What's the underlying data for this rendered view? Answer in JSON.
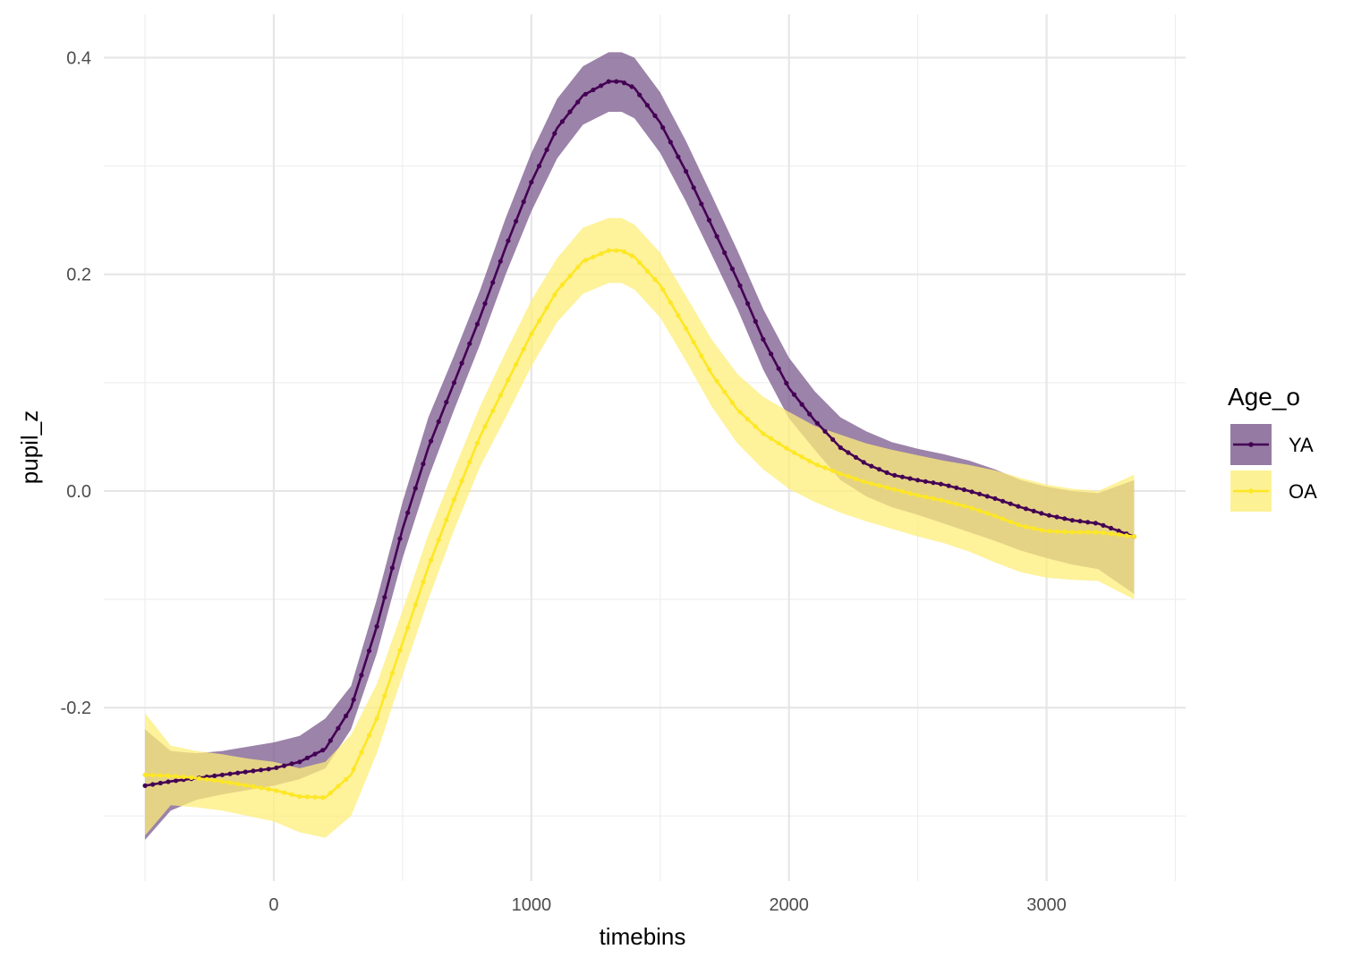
{
  "chart_data": {
    "type": "line",
    "xlabel": "timebins",
    "ylabel": "pupil_z",
    "xlim": [
      -660,
      3540
    ],
    "ylim": [
      -0.36,
      0.44
    ],
    "x_ticks": [
      0,
      1000,
      2000,
      3000
    ],
    "x_tick_labels": [
      "0",
      "1000",
      "2000",
      "3000"
    ],
    "y_ticks": [
      -0.2,
      0.0,
      0.2,
      0.4
    ],
    "y_tick_labels": [
      "-0.2",
      "0.0",
      "0.2",
      "0.4"
    ],
    "grid": true,
    "legend": {
      "title": "Age_o",
      "position": "right"
    },
    "x": [
      -500,
      -400,
      -300,
      -200,
      -100,
      0,
      100,
      200,
      300,
      400,
      500,
      600,
      700,
      800,
      900,
      1000,
      1100,
      1200,
      1300,
      1350,
      1400,
      1500,
      1600,
      1700,
      1800,
      1900,
      2000,
      2100,
      2200,
      2300,
      2400,
      2500,
      2600,
      2700,
      2800,
      2900,
      3000,
      3100,
      3200,
      3340
    ],
    "series": [
      {
        "name": "YA",
        "color": "#440154",
        "band_color": "#7b5a8c",
        "y": [
          -0.272,
          -0.268,
          -0.265,
          -0.262,
          -0.259,
          -0.256,
          -0.25,
          -0.238,
          -0.2,
          -0.125,
          -0.035,
          0.04,
          0.1,
          0.16,
          0.225,
          0.285,
          0.335,
          0.365,
          0.378,
          0.378,
          0.372,
          0.34,
          0.295,
          0.245,
          0.195,
          0.14,
          0.095,
          0.065,
          0.04,
          0.025,
          0.015,
          0.01,
          0.006,
          0.0,
          -0.007,
          -0.015,
          -0.022,
          -0.027,
          -0.03,
          -0.042
        ],
        "lower": [
          -0.322,
          -0.295,
          -0.285,
          -0.28,
          -0.276,
          -0.272,
          -0.266,
          -0.256,
          -0.22,
          -0.15,
          -0.062,
          0.012,
          0.075,
          0.135,
          0.2,
          0.258,
          0.307,
          0.338,
          0.35,
          0.35,
          0.344,
          0.312,
          0.267,
          0.218,
          0.168,
          0.112,
          0.067,
          0.038,
          0.01,
          -0.005,
          -0.015,
          -0.022,
          -0.03,
          -0.038,
          -0.046,
          -0.055,
          -0.062,
          -0.068,
          -0.072,
          -0.095
        ],
        "upper": [
          -0.22,
          -0.24,
          -0.242,
          -0.24,
          -0.236,
          -0.232,
          -0.226,
          -0.21,
          -0.18,
          -0.1,
          -0.01,
          0.068,
          0.125,
          0.185,
          0.252,
          0.312,
          0.362,
          0.392,
          0.405,
          0.405,
          0.4,
          0.368,
          0.323,
          0.273,
          0.222,
          0.168,
          0.123,
          0.092,
          0.068,
          0.055,
          0.045,
          0.039,
          0.034,
          0.028,
          0.02,
          0.01,
          0.004,
          0.0,
          -0.002,
          0.01
        ]
      },
      {
        "name": "OA",
        "color": "#fde725",
        "band_color": "#fdee7a",
        "y": [
          -0.262,
          -0.263,
          -0.265,
          -0.268,
          -0.272,
          -0.276,
          -0.282,
          -0.283,
          -0.262,
          -0.21,
          -0.14,
          -0.07,
          -0.008,
          0.05,
          0.098,
          0.145,
          0.185,
          0.212,
          0.222,
          0.222,
          0.216,
          0.19,
          0.15,
          0.108,
          0.075,
          0.053,
          0.038,
          0.025,
          0.016,
          0.008,
          0.002,
          -0.004,
          -0.009,
          -0.015,
          -0.023,
          -0.032,
          -0.037,
          -0.038,
          -0.038,
          -0.042
        ],
        "lower": [
          -0.318,
          -0.29,
          -0.292,
          -0.295,
          -0.3,
          -0.305,
          -0.315,
          -0.32,
          -0.3,
          -0.242,
          -0.17,
          -0.1,
          -0.036,
          0.022,
          0.068,
          0.115,
          0.156,
          0.182,
          0.192,
          0.192,
          0.186,
          0.16,
          0.12,
          0.078,
          0.044,
          0.02,
          0.002,
          -0.01,
          -0.02,
          -0.028,
          -0.035,
          -0.042,
          -0.048,
          -0.056,
          -0.066,
          -0.075,
          -0.08,
          -0.082,
          -0.083,
          -0.1
        ],
        "upper": [
          -0.205,
          -0.235,
          -0.24,
          -0.243,
          -0.247,
          -0.25,
          -0.256,
          -0.25,
          -0.225,
          -0.178,
          -0.11,
          -0.04,
          0.02,
          0.078,
          0.128,
          0.176,
          0.215,
          0.243,
          0.252,
          0.252,
          0.246,
          0.22,
          0.18,
          0.14,
          0.108,
          0.087,
          0.073,
          0.06,
          0.052,
          0.044,
          0.038,
          0.033,
          0.028,
          0.024,
          0.019,
          0.012,
          0.006,
          0.002,
          0.0,
          0.015
        ]
      }
    ]
  }
}
